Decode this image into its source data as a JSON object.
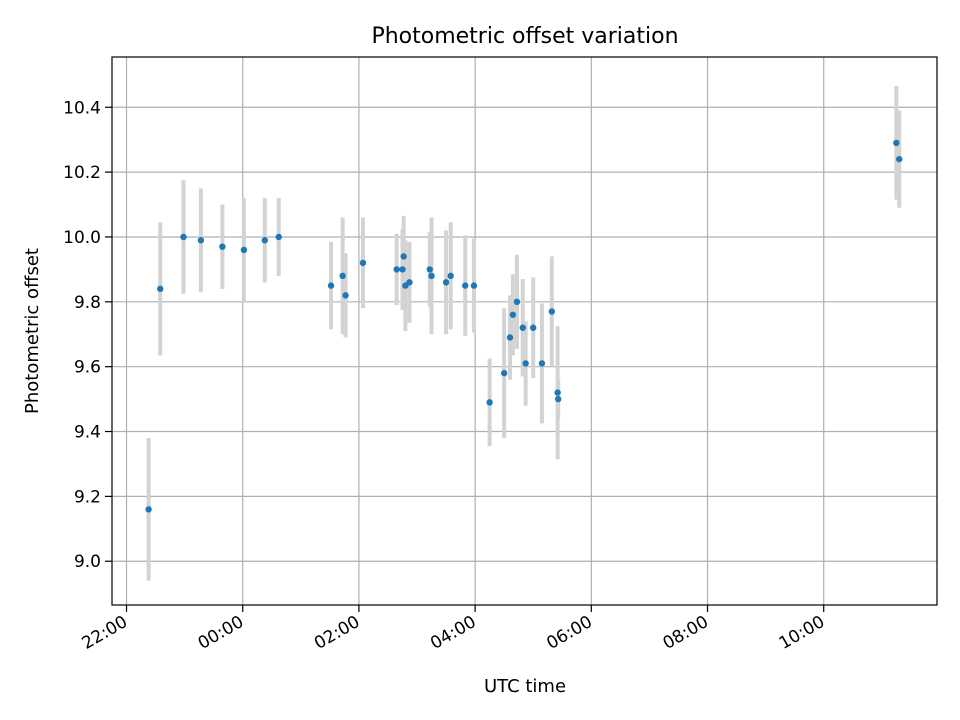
{
  "chart_data": {
    "type": "scatter",
    "title": "Photometric offset variation",
    "xlabel": "UTC time",
    "ylabel": "Photometric offset",
    "xlim_hours": [
      21.75,
      35.95
    ],
    "ylim": [
      8.865,
      10.555
    ],
    "x_ticks": [
      {
        "hour": 22,
        "label": "22:00"
      },
      {
        "hour": 24,
        "label": "00:00"
      },
      {
        "hour": 26,
        "label": "02:00"
      },
      {
        "hour": 28,
        "label": "04:00"
      },
      {
        "hour": 30,
        "label": "06:00"
      },
      {
        "hour": 32,
        "label": "08:00"
      },
      {
        "hour": 34,
        "label": "10:00"
      }
    ],
    "y_ticks": [
      {
        "value": 9.0,
        "label": "9.0"
      },
      {
        "value": 9.2,
        "label": "9.2"
      },
      {
        "value": 9.4,
        "label": "9.4"
      },
      {
        "value": 9.6,
        "label": "9.6"
      },
      {
        "value": 9.8,
        "label": "9.8"
      },
      {
        "value": 10.0,
        "label": "10.0"
      },
      {
        "value": 10.2,
        "label": "10.2"
      },
      {
        "value": 10.4,
        "label": "10.4"
      }
    ],
    "grid": true,
    "marker_color": "#1f77b4",
    "errorbar_color": "#d3d3d3",
    "points": [
      {
        "t": 22.38,
        "y": 9.16,
        "err": 0.22
      },
      {
        "t": 22.58,
        "y": 9.84,
        "err": 0.205
      },
      {
        "t": 22.98,
        "y": 10.0,
        "err": 0.175
      },
      {
        "t": 23.28,
        "y": 9.99,
        "err": 0.16
      },
      {
        "t": 23.65,
        "y": 9.97,
        "err": 0.13
      },
      {
        "t": 24.02,
        "y": 9.96,
        "err": 0.16
      },
      {
        "t": 24.38,
        "y": 9.99,
        "err": 0.13
      },
      {
        "t": 24.62,
        "y": 10.0,
        "err": 0.12
      },
      {
        "t": 25.52,
        "y": 9.85,
        "err": 0.135
      },
      {
        "t": 25.72,
        "y": 9.88,
        "err": 0.18
      },
      {
        "t": 25.77,
        "y": 9.82,
        "err": 0.13
      },
      {
        "t": 26.07,
        "y": 9.92,
        "err": 0.14
      },
      {
        "t": 26.65,
        "y": 9.9,
        "err": 0.11
      },
      {
        "t": 26.75,
        "y": 9.9,
        "err": 0.125
      },
      {
        "t": 26.77,
        "y": 9.94,
        "err": 0.125
      },
      {
        "t": 26.8,
        "y": 9.85,
        "err": 0.14
      },
      {
        "t": 26.87,
        "y": 9.86,
        "err": 0.125
      },
      {
        "t": 27.22,
        "y": 9.9,
        "err": 0.115
      },
      {
        "t": 27.25,
        "y": 9.88,
        "err": 0.18
      },
      {
        "t": 27.5,
        "y": 9.86,
        "err": 0.16
      },
      {
        "t": 27.58,
        "y": 9.88,
        "err": 0.165
      },
      {
        "t": 27.83,
        "y": 9.85,
        "err": 0.155
      },
      {
        "t": 27.98,
        "y": 9.85,
        "err": 0.145
      },
      {
        "t": 28.25,
        "y": 9.49,
        "err": 0.135
      },
      {
        "t": 28.5,
        "y": 9.58,
        "err": 0.2
      },
      {
        "t": 28.6,
        "y": 9.69,
        "err": 0.13
      },
      {
        "t": 28.65,
        "y": 9.76,
        "err": 0.125
      },
      {
        "t": 28.72,
        "y": 9.8,
        "err": 0.145
      },
      {
        "t": 28.82,
        "y": 9.72,
        "err": 0.15
      },
      {
        "t": 28.87,
        "y": 9.61,
        "err": 0.13
      },
      {
        "t": 29.0,
        "y": 9.72,
        "err": 0.155
      },
      {
        "t": 29.15,
        "y": 9.61,
        "err": 0.185
      },
      {
        "t": 29.32,
        "y": 9.77,
        "err": 0.17
      },
      {
        "t": 29.42,
        "y": 9.52,
        "err": 0.205
      },
      {
        "t": 29.43,
        "y": 9.5,
        "err": 0.06
      },
      {
        "t": 35.25,
        "y": 10.29,
        "err": 0.175
      },
      {
        "t": 35.3,
        "y": 10.24,
        "err": 0.15
      }
    ]
  }
}
